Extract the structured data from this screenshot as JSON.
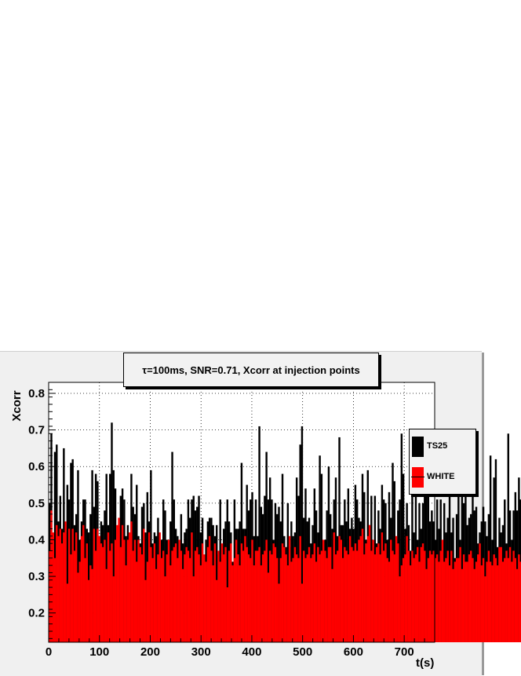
{
  "chart_data": {
    "type": "bar",
    "title": "τ=100ms, SNR=0.71, Xcorr at injection points",
    "xlabel": "t(s)",
    "ylabel": "Xcorr",
    "xlim": [
      0,
      760
    ],
    "ylim": [
      0.12,
      0.83
    ],
    "x_ticks": [
      0,
      100,
      200,
      300,
      400,
      500,
      600,
      700
    ],
    "y_ticks": [
      0.2,
      0.3,
      0.4,
      0.5,
      0.6,
      0.7,
      0.8
    ],
    "grid": true,
    "legend_position": "right",
    "bin_width_s": 3.5,
    "series": [
      {
        "name": "TS25",
        "color": "#000000",
        "values": [
          0.5,
          0.69,
          0.4,
          0.64,
          0.66,
          0.45,
          0.52,
          0.43,
          0.65,
          0.42,
          0.55,
          0.51,
          0.61,
          0.62,
          0.44,
          0.47,
          0.59,
          0.4,
          0.45,
          0.51,
          0.51,
          0.43,
          0.42,
          0.47,
          0.59,
          0.49,
          0.58,
          0.56,
          0.41,
          0.45,
          0.44,
          0.48,
          0.58,
          0.44,
          0.58,
          0.72,
          0.59,
          0.54,
          0.4,
          0.44,
          0.52,
          0.54,
          0.51,
          0.41,
          0.44,
          0.36,
          0.58,
          0.49,
          0.47,
          0.55,
          0.41,
          0.39,
          0.49,
          0.5,
          0.42,
          0.53,
          0.45,
          0.59,
          0.39,
          0.42,
          0.41,
          0.46,
          0.35,
          0.4,
          0.51,
          0.48,
          0.4,
          0.4,
          0.45,
          0.64,
          0.51,
          0.43,
          0.41,
          0.35,
          0.47,
          0.39,
          0.42,
          0.43,
          0.51,
          0.46,
          0.51,
          0.52,
          0.48,
          0.49,
          0.52,
          0.42,
          0.46,
          0.34,
          0.4,
          0.45,
          0.46,
          0.46,
          0.44,
          0.41,
          0.44,
          0.36,
          0.51,
          0.35,
          0.43,
          0.45,
          0.51,
          0.45,
          0.42,
          0.34,
          0.51,
          0.43,
          0.43,
          0.45,
          0.61,
          0.43,
          0.43,
          0.55,
          0.48,
          0.51,
          0.53,
          0.41,
          0.51,
          0.41,
          0.71,
          0.49,
          0.47,
          0.52,
          0.64,
          0.51,
          0.57,
          0.51,
          0.4,
          0.5,
          0.47,
          0.49,
          0.45,
          0.58,
          0.41,
          0.38,
          0.5,
          0.38,
          0.45,
          0.41,
          0.42,
          0.57,
          0.52,
          0.66,
          0.71,
          0.46,
          0.54,
          0.45,
          0.46,
          0.39,
          0.44,
          0.54,
          0.48,
          0.42,
          0.63,
          0.58,
          0.4,
          0.4,
          0.48,
          0.6,
          0.47,
          0.43,
          0.51,
          0.57,
          0.41,
          0.68,
          0.44,
          0.44,
          0.51,
          0.45,
          0.54,
          0.43,
          0.46,
          0.43,
          0.55,
          0.51,
          0.46,
          0.45,
          0.58,
          0.53,
          0.4,
          0.59,
          0.44,
          0.52,
          0.38,
          0.52,
          0.39,
          0.48,
          0.43,
          0.55,
          0.51,
          0.5,
          0.4,
          0.53,
          0.46,
          0.61,
          0.56,
          0.39,
          0.48,
          0.51,
          0.69,
          0.58,
          0.43,
          0.5,
          0.44,
          0.37,
          0.6,
          0.42,
          0.59,
          0.4,
          0.5,
          0.43,
          0.5,
          0.68,
          0.53,
          0.58,
          0.45,
          0.48,
          0.45,
          0.4,
          0.51,
          0.43,
          0.51,
          0.4,
          0.5,
          0.42,
          0.46,
          0.54,
          0.42,
          0.46,
          0.35,
          0.47,
          0.52,
          0.4,
          0.55,
          0.5,
          0.53,
          0.44,
          0.46,
          0.47,
          0.55,
          0.48,
          0.49,
          0.39,
          0.42,
          0.45,
          0.49,
          0.45,
          0.41,
          0.47,
          0.63,
          0.4,
          0.57,
          0.62,
          0.38,
          0.46,
          0.42,
          0.44,
          0.51,
          0.39,
          0.69,
          0.48,
          0.4,
          0.48,
          0.53,
          0.48,
          0.57,
          0.51,
          0.52,
          0.6,
          0.41,
          0.37,
          0.54,
          0.42,
          0.64,
          0.4,
          0.48,
          0.45,
          0.56,
          0.46,
          0.48,
          0.43,
          0.49,
          0.49,
          0.56,
          0.57,
          0.49,
          0.44,
          0.54,
          0.54,
          0.4,
          0.4,
          0.39,
          0.68,
          0.48,
          0.47,
          0.52,
          0.43,
          0.45,
          0.43,
          0.48,
          0.54,
          0.49,
          0.57,
          0.51,
          0.47,
          0.69,
          0.44,
          0.4,
          0.52,
          0.49,
          0.55,
          0.49,
          0.57,
          0.44,
          0.65,
          0.55,
          0.45,
          0.56,
          0.46,
          0.41,
          0.55,
          0.43,
          0.52,
          0.49,
          0.47,
          0.41,
          0.49,
          0.45,
          0.43,
          0.53,
          0.44,
          0.57,
          0.48,
          0.53,
          0.43,
          0.67,
          0.46,
          0.41,
          0.49,
          0.48,
          0.51,
          0.49,
          0.61,
          0.5,
          0.45,
          0.46,
          0.42,
          0.65,
          0.49,
          0.53,
          0.64,
          0.44,
          0.62,
          0.51,
          0.61,
          0.5,
          0.45,
          0.48,
          0.48,
          0.51,
          0.57,
          0.44,
          0.45,
          0.47,
          0.43,
          0.55,
          0.49,
          0.53,
          0.41,
          0.51,
          0.48,
          0.47,
          0.58,
          0.53,
          0.43,
          0.51,
          0.45,
          0.38,
          0.54,
          0.43,
          0.49,
          0.63,
          0.43,
          0.55,
          0.41,
          0.51,
          0.48,
          0.62,
          0.47,
          0.44,
          0.5,
          0.51,
          0.48,
          0.45,
          0.48,
          0.4,
          0.41,
          0.55,
          0.52,
          0.48,
          0.45,
          0.52,
          0.43,
          0.45,
          0.51,
          0.48,
          0.59,
          0.49,
          0.57,
          0.47,
          0.53,
          0.41,
          0.46,
          0.53,
          0.43,
          0.47,
          0.48,
          0.45,
          0.4,
          0.5,
          0.42,
          0.51,
          0.44,
          0.49,
          0.58,
          0.43,
          0.54,
          0.4,
          0.45,
          0.51,
          0.45,
          0.55,
          0.42,
          0.45,
          0.48,
          0.44,
          0.43,
          0.56,
          0.53,
          0.41,
          0.45,
          0.44,
          0.48,
          0.61,
          0.42,
          0.58,
          0.52,
          0.54,
          0.44,
          0.57,
          0.48,
          0.41,
          0.49,
          0.43,
          0.45,
          0.44,
          0.48,
          0.43,
          0.51,
          0.44,
          0.42,
          0.5,
          0.5,
          0.45,
          0.56,
          0.46,
          0.43,
          0.49,
          0.5,
          0.44,
          0.49,
          0.55,
          0.43,
          0.43,
          0.53,
          0.43,
          0.52,
          0.48,
          0.46,
          0.53,
          0.48,
          0.54,
          0.4,
          0.45,
          0.48,
          0.49,
          0.52,
          0.44,
          0.47,
          0.51,
          0.42,
          0.49,
          0.55,
          0.41,
          0.44,
          0.48,
          0.44,
          0.46,
          0.47,
          0.4,
          0.47,
          0.48,
          0.53,
          0.43,
          0.5,
          0.45,
          0.43,
          0.46,
          0.5,
          0.47,
          0.44,
          0.52,
          0.46,
          0.42,
          0.49,
          0.47,
          0.44,
          0.47,
          0.41,
          0.49,
          0.45,
          0.51,
          0.48,
          0.44,
          0.46,
          0.5,
          0.47,
          0.43,
          0.48,
          0.45,
          0.46,
          0.49,
          0.44,
          0.47,
          0.5,
          0.42,
          0.46,
          0.48,
          0.45,
          0.47,
          0.44,
          0.43,
          0.46,
          0.48,
          0.45,
          0.47,
          0.44,
          0.46
        ]
      },
      {
        "name": "WHITE",
        "color": "#ff0000",
        "values": [
          0.37,
          0.48,
          0.42,
          0.35,
          0.44,
          0.41,
          0.43,
          0.39,
          0.42,
          0.45,
          0.28,
          0.43,
          0.36,
          0.43,
          0.37,
          0.42,
          0.31,
          0.34,
          0.41,
          0.44,
          0.35,
          0.39,
          0.29,
          0.33,
          0.32,
          0.43,
          0.37,
          0.43,
          0.41,
          0.39,
          0.38,
          0.4,
          0.32,
          0.42,
          0.37,
          0.39,
          0.3,
          0.4,
          0.44,
          0.46,
          0.38,
          0.44,
          0.4,
          0.33,
          0.4,
          0.42,
          0.45,
          0.37,
          0.4,
          0.34,
          0.4,
          0.38,
          0.36,
          0.43,
          0.29,
          0.34,
          0.42,
          0.38,
          0.35,
          0.39,
          0.32,
          0.36,
          0.42,
          0.35,
          0.37,
          0.3,
          0.36,
          0.4,
          0.33,
          0.37,
          0.38,
          0.39,
          0.35,
          0.4,
          0.37,
          0.32,
          0.36,
          0.38,
          0.37,
          0.35,
          0.42,
          0.3,
          0.37,
          0.38,
          0.36,
          0.33,
          0.39,
          0.36,
          0.34,
          0.38,
          0.41,
          0.37,
          0.33,
          0.39,
          0.29,
          0.37,
          0.34,
          0.39,
          0.36,
          0.38,
          0.27,
          0.37,
          0.39,
          0.33,
          0.35,
          0.4,
          0.36,
          0.33,
          0.39,
          0.37,
          0.41,
          0.38,
          0.36,
          0.35,
          0.4,
          0.33,
          0.37,
          0.37,
          0.38,
          0.33,
          0.36,
          0.37,
          0.4,
          0.31,
          0.37,
          0.36,
          0.39,
          0.38,
          0.35,
          0.28,
          0.35,
          0.39,
          0.38,
          0.36,
          0.33,
          0.41,
          0.34,
          0.35,
          0.38,
          0.36,
          0.35,
          0.41,
          0.28,
          0.37,
          0.35,
          0.36,
          0.38,
          0.35,
          0.36,
          0.39,
          0.34,
          0.38,
          0.36,
          0.37,
          0.4,
          0.37,
          0.35,
          0.38,
          0.38,
          0.32,
          0.42,
          0.36,
          0.37,
          0.41,
          0.4,
          0.35,
          0.38,
          0.37,
          0.36,
          0.41,
          0.38,
          0.37,
          0.39,
          0.37,
          0.4,
          0.41,
          0.43,
          0.36,
          0.39,
          0.41,
          0.44,
          0.37,
          0.4,
          0.36,
          0.38,
          0.39,
          0.36,
          0.42,
          0.37,
          0.39,
          0.35,
          0.34,
          0.4,
          0.37,
          0.36,
          0.41,
          0.39,
          0.3,
          0.33,
          0.35,
          0.36,
          0.41,
          0.37,
          0.33,
          0.37,
          0.35,
          0.36,
          0.38,
          0.34,
          0.38,
          0.39,
          0.37,
          0.32,
          0.35,
          0.37,
          0.36,
          0.37,
          0.35,
          0.36,
          0.34,
          0.37,
          0.4,
          0.34,
          0.35,
          0.37,
          0.33,
          0.37,
          0.32,
          0.34,
          0.35,
          0.35,
          0.38,
          0.32,
          0.36,
          0.34,
          0.34,
          0.36,
          0.37,
          0.35,
          0.32,
          0.34,
          0.36,
          0.39,
          0.33,
          0.35,
          0.3,
          0.34,
          0.37,
          0.34,
          0.33,
          0.36,
          0.35,
          0.33,
          0.38,
          0.38,
          0.34,
          0.35,
          0.37,
          0.35,
          0.38,
          0.34,
          0.37,
          0.35,
          0.32,
          0.36,
          0.34,
          0.36,
          0.35,
          0.37,
          0.34,
          0.35,
          0.36,
          0.35,
          0.34,
          0.37,
          0.33,
          0.36,
          0.35,
          0.38,
          0.34,
          0.36,
          0.35,
          0.33,
          0.36,
          0.37,
          0.34,
          0.35,
          0.36,
          0.34,
          0.37,
          0.33,
          0.36,
          0.35,
          0.34,
          0.37,
          0.36,
          0.33,
          0.35,
          0.36,
          0.34,
          0.37,
          0.35,
          0.36,
          0.34,
          0.35,
          0.37,
          0.33,
          0.36,
          0.35,
          0.34,
          0.36,
          0.35,
          0.37,
          0.34,
          0.36,
          0.35,
          0.34,
          0.36,
          0.35,
          0.33,
          0.37,
          0.35,
          0.34,
          0.36,
          0.35,
          0.34,
          0.36,
          0.35,
          0.37,
          0.34,
          0.36,
          0.35,
          0.34,
          0.36,
          0.35,
          0.36,
          0.34,
          0.35,
          0.37,
          0.34,
          0.36,
          0.35,
          0.34,
          0.36,
          0.35,
          0.36,
          0.34,
          0.35,
          0.36,
          0.34,
          0.36,
          0.35,
          0.34,
          0.36,
          0.35,
          0.36,
          0.34,
          0.35,
          0.36,
          0.34,
          0.36,
          0.35,
          0.34,
          0.36,
          0.35,
          0.36,
          0.34,
          0.35,
          0.36,
          0.34,
          0.36,
          0.35,
          0.34,
          0.36,
          0.35,
          0.36,
          0.34,
          0.35,
          0.36,
          0.34,
          0.36,
          0.35,
          0.34,
          0.36,
          0.35,
          0.36,
          0.34,
          0.35,
          0.36,
          0.34,
          0.36,
          0.35,
          0.34,
          0.36,
          0.35,
          0.36,
          0.34,
          0.35,
          0.36,
          0.34,
          0.36,
          0.35,
          0.34,
          0.36,
          0.35,
          0.36,
          0.34,
          0.35,
          0.36,
          0.34,
          0.36,
          0.35,
          0.34,
          0.36,
          0.35,
          0.36,
          0.34,
          0.35,
          0.36,
          0.34,
          0.36,
          0.35,
          0.34,
          0.36,
          0.35,
          0.36,
          0.34,
          0.35,
          0.36,
          0.34,
          0.36,
          0.35,
          0.34,
          0.36,
          0.35,
          0.36,
          0.34,
          0.35,
          0.36,
          0.34,
          0.36,
          0.35,
          0.34,
          0.36,
          0.35,
          0.36,
          0.34,
          0.35,
          0.36,
          0.34,
          0.36,
          0.35,
          0.34,
          0.36,
          0.35,
          0.36,
          0.34,
          0.35,
          0.36,
          0.34,
          0.36,
          0.35,
          0.34,
          0.36,
          0.35,
          0.36,
          0.34,
          0.35,
          0.36,
          0.34,
          0.36,
          0.35,
          0.34,
          0.36,
          0.35,
          0.36,
          0.34,
          0.35,
          0.36,
          0.34,
          0.36,
          0.35,
          0.34,
          0.36,
          0.35,
          0.36,
          0.34,
          0.35,
          0.36,
          0.34,
          0.36,
          0.35,
          0.34,
          0.36,
          0.35,
          0.36,
          0.34,
          0.35,
          0.36,
          0.34,
          0.36,
          0.35,
          0.34,
          0.36,
          0.35,
          0.36,
          0.34,
          0.35,
          0.36,
          0.34,
          0.36,
          0.35,
          0.34,
          0.36,
          0.35
        ]
      }
    ]
  }
}
